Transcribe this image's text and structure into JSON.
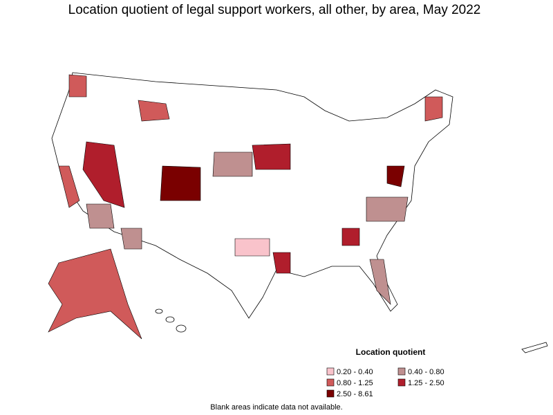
{
  "title": "Location quotient of legal support workers, all other, by area, May 2022",
  "legend": {
    "title": "Location quotient",
    "items": [
      {
        "label": "0.20 - 0.40",
        "color": "#f9c3cb"
      },
      {
        "label": "0.40 - 0.80",
        "color": "#bf9090"
      },
      {
        "label": "0.80 - 1.25",
        "color": "#d05a5a"
      },
      {
        "label": "1.25 - 2.50",
        "color": "#b01e2c"
      },
      {
        "label": "2.50 - 8.61",
        "color": "#7a0000"
      }
    ]
  },
  "note": "Blank areas indicate data not available."
}
